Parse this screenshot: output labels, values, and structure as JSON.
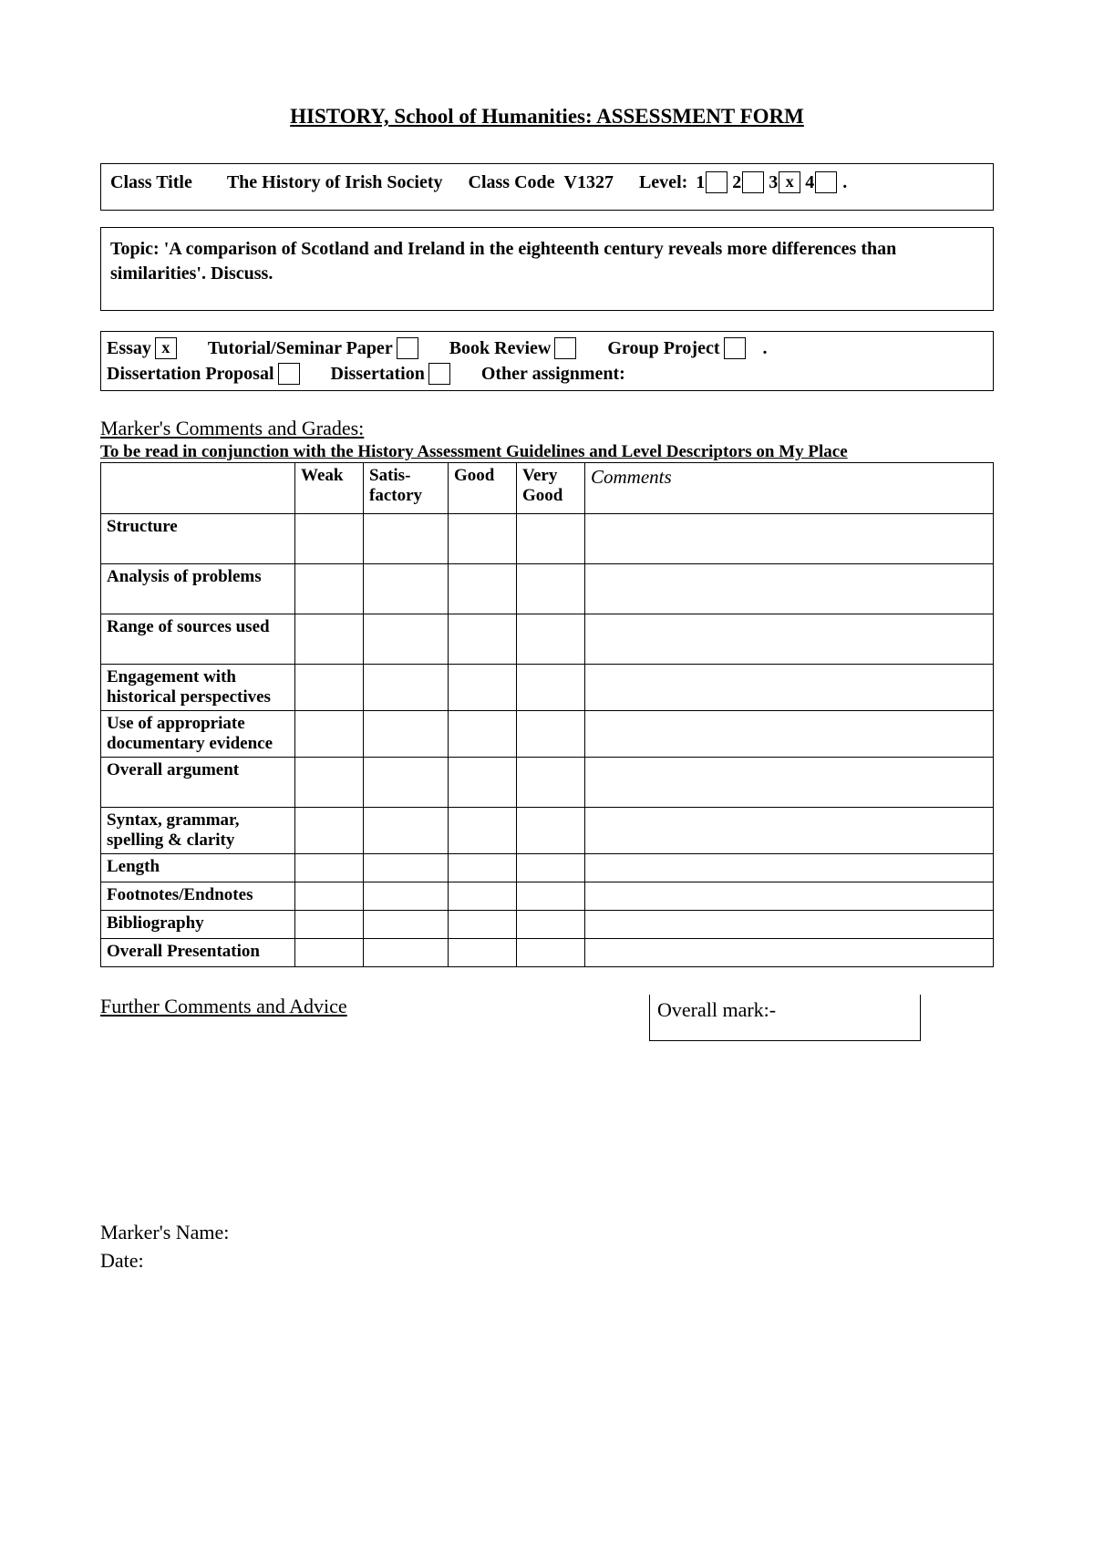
{
  "title": "HISTORY, School of Humanities: ASSESSMENT FORM",
  "classTitleLabel": "Class Title",
  "classTitleValue": "The History of Irish Society",
  "classCodeLabel": "Class Code",
  "classCodeValue": "V1327",
  "levelLabel": "Level:",
  "levels": [
    {
      "num": "1",
      "mark": ""
    },
    {
      "num": "2",
      "mark": ""
    },
    {
      "num": "3",
      "mark": "x"
    },
    {
      "num": "4",
      "mark": ""
    }
  ],
  "topicLabel": "Topic: ",
  "topicText": "'A comparison of Scotland and Ireland in the eighteenth century reveals more differences than similarities'. Discuss.",
  "types": {
    "essay": {
      "label": "Essay",
      "mark": "x"
    },
    "tutorial": {
      "label": "Tutorial/Seminar Paper",
      "mark": ""
    },
    "bookreview": {
      "label": "Book Review",
      "mark": ""
    },
    "groupproject": {
      "label": "Group Project",
      "mark": ""
    },
    "dissprop": {
      "label": "Dissertation Proposal",
      "mark": ""
    },
    "dissertation": {
      "label": "Dissertation",
      "mark": ""
    },
    "other": {
      "label": "Other assignment:",
      "value": ""
    }
  },
  "markerSection": "Marker's Comments and Grades:",
  "markerSub": "To be read in conjunction with the History Assessment Guidelines and Level Descriptors on My Place",
  "gradeHeaders": {
    "weak": "Weak",
    "satis": "Satis-\nfactory",
    "good": "Good",
    "verygood": "Very\nGood",
    "comments": "Comments"
  },
  "criteria": [
    {
      "label": "Structure",
      "h": "tall"
    },
    {
      "label": "Analysis of problems",
      "h": "tall"
    },
    {
      "label": "Range of sources used",
      "h": "tall"
    },
    {
      "label": "Engagement with historical perspectives",
      "h": "med"
    },
    {
      "label": "Use of appropriate documentary evidence",
      "h": "med"
    },
    {
      "label": "Overall argument",
      "h": "tall"
    },
    {
      "label": "Syntax, grammar, spelling & clarity",
      "h": "med"
    },
    {
      "label": "Length",
      "h": "short"
    },
    {
      "label": "Footnotes/Endnotes",
      "h": "short"
    },
    {
      "label": "Bibliography",
      "h": "short"
    },
    {
      "label": "Overall Presentation",
      "h": "short"
    }
  ],
  "furtherLabel": "Further Comments and Advice",
  "overallMarkLabel": "Overall mark:-",
  "markerNameLabel": "Marker's Name:",
  "dateLabel": "Date:",
  "colors": {
    "text": "#000000",
    "background": "#ffffff",
    "border": "#000000"
  }
}
